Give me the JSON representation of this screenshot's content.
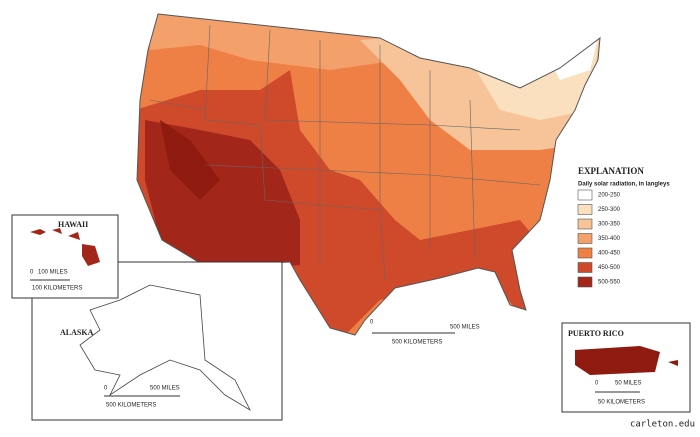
{
  "legend": {
    "title": "EXPLANATION",
    "subtitle": "Daily solar radiation, in langleys",
    "items": [
      {
        "label": "200-250",
        "color": "#ffffff"
      },
      {
        "label": "250-300",
        "color": "#fbe0bf"
      },
      {
        "label": "300-350",
        "color": "#f7c398"
      },
      {
        "label": "350-400",
        "color": "#f3a06a"
      },
      {
        "label": "400-450",
        "color": "#ee7f45"
      },
      {
        "label": "450-500",
        "color": "#cf4a2a"
      },
      {
        "label": "500-550",
        "color": "#a3261a"
      }
    ]
  },
  "insets": {
    "hawaii": "HAWAII",
    "alaska": "ALASKA",
    "puerto_rico": "PUERTO RICO"
  },
  "scales": {
    "zero": "0",
    "main_miles": "500 MILES",
    "main_km": "500 KILOMETERS",
    "hawaii_miles": "100 MILES",
    "hawaii_km": "100 KILOMETERS",
    "alaska_miles": "500 MILES",
    "alaska_km": "500 KILOMETERS",
    "pr_miles": "50 MILES",
    "pr_km": "50 KILOMETERS"
  },
  "credit": "carleton.edu"
}
